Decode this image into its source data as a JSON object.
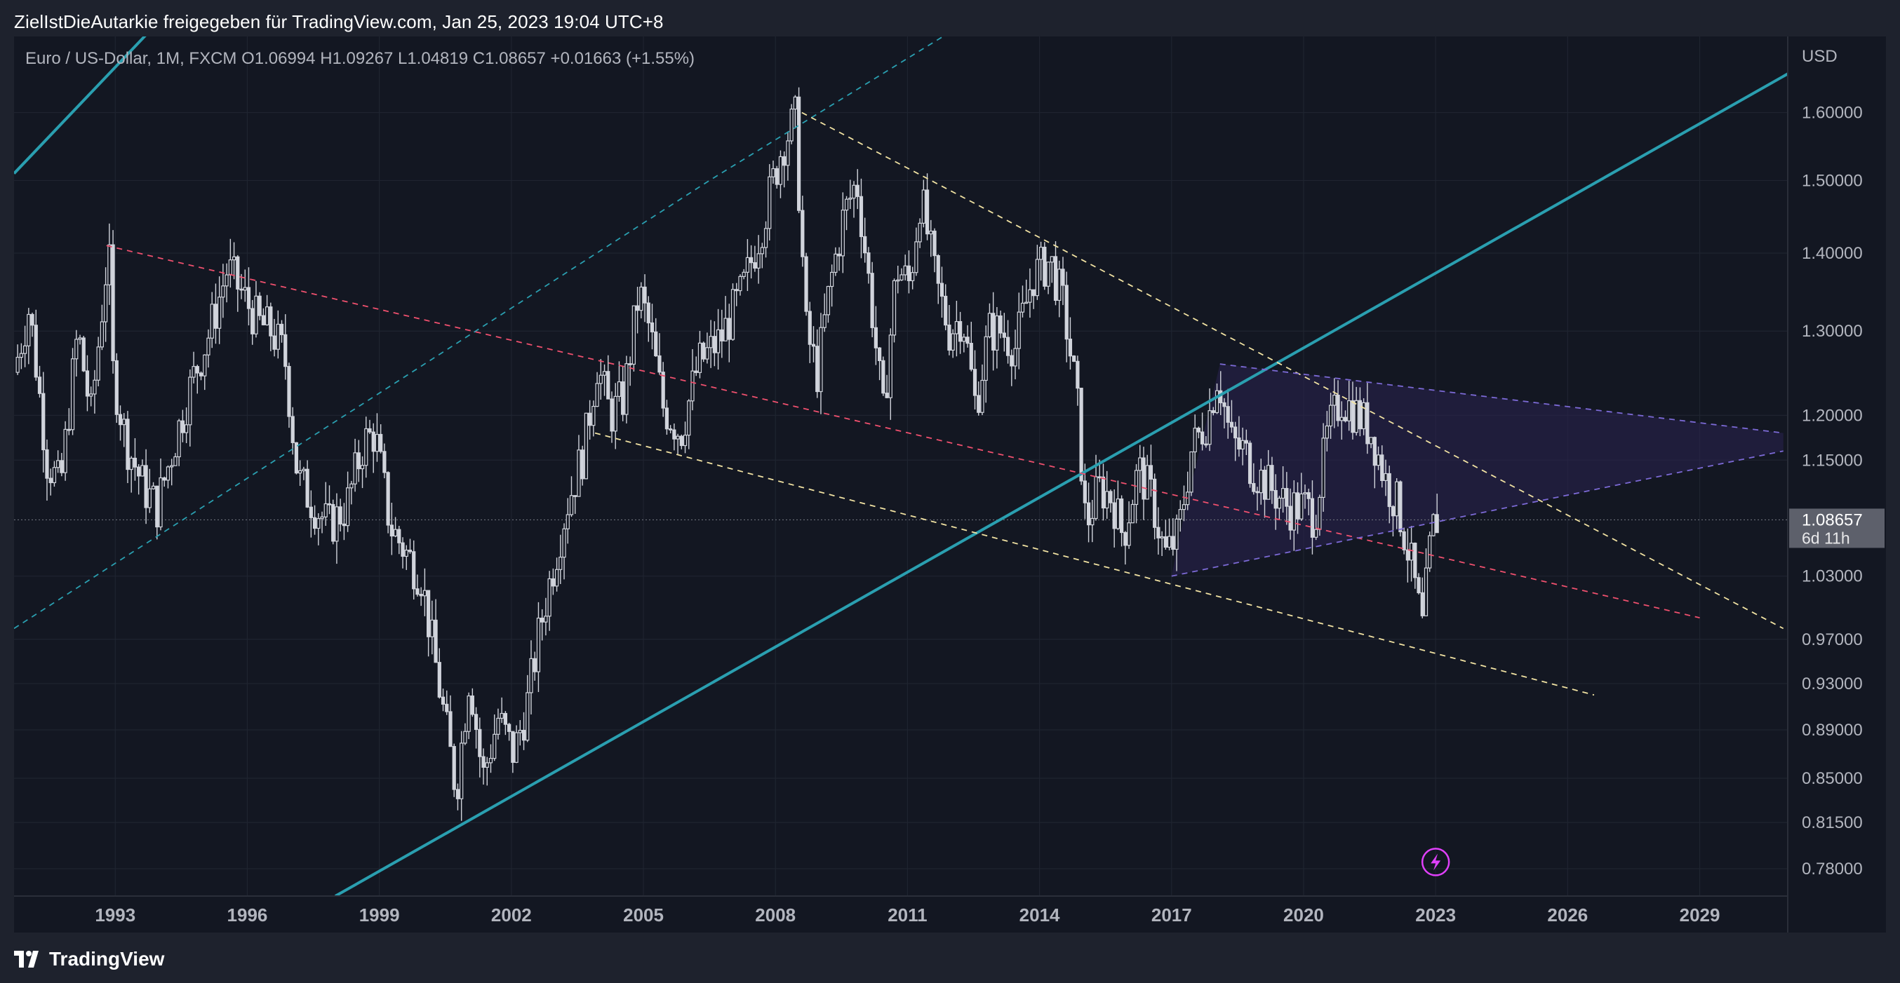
{
  "header": {
    "title": "ZielIstDieAutarkie freigegeben für TradingView.com, Jan 25, 2023 19:04 UTC+8"
  },
  "legend": {
    "symbol": "Euro / US-Dollar, 1M, FXCM",
    "o_label": "O",
    "o_value": "1.06994",
    "h_label": "H",
    "h_value": "1.09267",
    "l_label": "L",
    "l_value": "1.04819",
    "c_label": "C",
    "c_value": "1.08657",
    "change": "+0.01663 (+1.55%)"
  },
  "footer": {
    "brand": "TradingView"
  },
  "colors": {
    "background": "#131722",
    "chrome": "#1e222d",
    "candle": "#d1d4dc",
    "teal": "#2a9fb0",
    "red": "#f0506e",
    "yellow": "#f2e3a3",
    "purple": "#7c6ad6",
    "triangle_fill": "#2a2350",
    "text": "#b2b5be",
    "flash_icon": "#e040fb"
  },
  "chart_data": {
    "type": "candlestick",
    "title": "Euro / US-Dollar, 1M, FXCM",
    "currency_label": "USD",
    "y_scale": "log",
    "ylim": [
      0.76,
      1.72
    ],
    "xlim": [
      1990.7,
      2031.0
    ],
    "y_ticks": [
      1.6,
      1.5,
      1.4,
      1.3,
      1.2,
      1.15,
      1.03,
      0.97,
      0.93,
      0.89,
      0.85,
      0.815,
      0.78
    ],
    "y_tick_labels": [
      "1.60000",
      "1.50000",
      "1.40000",
      "1.30000",
      "1.20000",
      "1.15000",
      "1.03000",
      "0.97000",
      "0.93000",
      "0.89000",
      "0.85000",
      "0.81500",
      "0.78000"
    ],
    "x_ticks": [
      1993,
      1996,
      1999,
      2002,
      2005,
      2008,
      2011,
      2014,
      2017,
      2020,
      2023,
      2026,
      2029
    ],
    "x_tick_labels": [
      "1993",
      "1996",
      "1999",
      "2002",
      "2005",
      "2008",
      "2011",
      "2014",
      "2017",
      "2020",
      "2023",
      "2026",
      "2029"
    ],
    "last_price": {
      "value": 1.08657,
      "label": "1.08657",
      "countdown": "6d 11h"
    },
    "price_path": [
      [
        1990.75,
        1.25
      ],
      [
        1991.1,
        1.33
      ],
      [
        1991.5,
        1.15
      ],
      [
        1991.8,
        1.12
      ],
      [
        1992.2,
        1.3
      ],
      [
        1992.5,
        1.2
      ],
      [
        1992.9,
        1.41
      ],
      [
        1993.0,
        1.25
      ],
      [
        1993.3,
        1.17
      ],
      [
        1993.7,
        1.12
      ],
      [
        1994.0,
        1.1
      ],
      [
        1994.4,
        1.17
      ],
      [
        1994.8,
        1.24
      ],
      [
        1995.2,
        1.3
      ],
      [
        1995.6,
        1.38
      ],
      [
        1995.9,
        1.35
      ],
      [
        1996.3,
        1.31
      ],
      [
        1996.6,
        1.3
      ],
      [
        1996.9,
        1.27
      ],
      [
        1997.2,
        1.13
      ],
      [
        1997.6,
        1.1
      ],
      [
        1997.9,
        1.08
      ],
      [
        1998.3,
        1.1
      ],
      [
        1998.7,
        1.17
      ],
      [
        1998.95,
        1.18
      ],
      [
        1999.3,
        1.08
      ],
      [
        1999.7,
        1.05
      ],
      [
        2000.0,
        1.03
      ],
      [
        2000.4,
        0.93
      ],
      [
        2000.8,
        0.84
      ],
      [
        2001.1,
        0.94
      ],
      [
        2001.4,
        0.85
      ],
      [
        2001.75,
        0.9
      ],
      [
        2002.1,
        0.87
      ],
      [
        2002.4,
        0.91
      ],
      [
        2002.7,
        0.98
      ],
      [
        2002.9,
        1.02
      ],
      [
        2003.3,
        1.1
      ],
      [
        2003.7,
        1.16
      ],
      [
        2004.0,
        1.26
      ],
      [
        2004.3,
        1.2
      ],
      [
        2004.6,
        1.22
      ],
      [
        2004.95,
        1.35
      ],
      [
        2005.2,
        1.3
      ],
      [
        2005.5,
        1.21
      ],
      [
        2005.9,
        1.18
      ],
      [
        2006.3,
        1.26
      ],
      [
        2006.8,
        1.29
      ],
      [
        2007.3,
        1.35
      ],
      [
        2007.8,
        1.45
      ],
      [
        2008.2,
        1.55
      ],
      [
        2008.5,
        1.59
      ],
      [
        2008.75,
        1.3
      ],
      [
        2009.0,
        1.25
      ],
      [
        2009.3,
        1.36
      ],
      [
        2009.6,
        1.45
      ],
      [
        2009.9,
        1.5
      ],
      [
        2010.2,
        1.35
      ],
      [
        2010.5,
        1.2
      ],
      [
        2010.8,
        1.38
      ],
      [
        2011.1,
        1.36
      ],
      [
        2011.35,
        1.48
      ],
      [
        2011.7,
        1.36
      ],
      [
        2012.0,
        1.3
      ],
      [
        2012.3,
        1.32
      ],
      [
        2012.6,
        1.21
      ],
      [
        2012.9,
        1.3
      ],
      [
        2013.2,
        1.3
      ],
      [
        2013.5,
        1.28
      ],
      [
        2013.9,
        1.37
      ],
      [
        2014.3,
        1.39
      ],
      [
        2014.6,
        1.33
      ],
      [
        2014.9,
        1.22
      ],
      [
        2015.1,
        1.08
      ],
      [
        2015.4,
        1.12
      ],
      [
        2015.7,
        1.11
      ],
      [
        2015.95,
        1.07
      ],
      [
        2016.3,
        1.14
      ],
      [
        2016.6,
        1.11
      ],
      [
        2016.9,
        1.05
      ],
      [
        2017.2,
        1.07
      ],
      [
        2017.5,
        1.16
      ],
      [
        2017.9,
        1.2
      ],
      [
        2018.1,
        1.25
      ],
      [
        2018.4,
        1.17
      ],
      [
        2018.7,
        1.16
      ],
      [
        2018.9,
        1.14
      ],
      [
        2019.3,
        1.12
      ],
      [
        2019.7,
        1.1
      ],
      [
        2020.1,
        1.1
      ],
      [
        2020.3,
        1.09
      ],
      [
        2020.6,
        1.18
      ],
      [
        2020.9,
        1.22
      ],
      [
        2021.3,
        1.2
      ],
      [
        2021.6,
        1.18
      ],
      [
        2021.9,
        1.13
      ],
      [
        2022.2,
        1.1
      ],
      [
        2022.5,
        1.04
      ],
      [
        2022.75,
        0.98
      ],
      [
        2022.95,
        1.07
      ],
      [
        2023.05,
        1.087
      ]
    ],
    "trendlines": [
      {
        "name": "outer-teal-upper",
        "style": "solid",
        "color": "teal",
        "points": [
          [
            1990.7,
            1.51
          ],
          [
            1994.7,
            1.8
          ]
        ]
      },
      {
        "name": "outer-teal-lower",
        "style": "solid",
        "color": "teal",
        "points": [
          [
            1998.0,
            0.76
          ],
          [
            2031.0,
            1.66
          ]
        ]
      },
      {
        "name": "teal-dashed-middle",
        "style": "dashed",
        "color": "teal",
        "points": [
          [
            1990.7,
            0.98
          ],
          [
            2006.5,
            1.5
          ],
          [
            2014.0,
            1.82
          ]
        ]
      },
      {
        "name": "red-dashed-channel",
        "style": "dashed",
        "color": "red",
        "points": [
          [
            1992.8,
            1.41
          ],
          [
            2029.0,
            0.99
          ]
        ]
      },
      {
        "name": "yellow-dashed-upper",
        "style": "dashed",
        "color": "yellow",
        "points": [
          [
            2008.6,
            1.6
          ],
          [
            2030.9,
            0.98
          ]
        ]
      },
      {
        "name": "yellow-dashed-lower",
        "style": "dashed",
        "color": "yellow",
        "points": [
          [
            2003.9,
            1.18
          ],
          [
            2026.6,
            0.92
          ]
        ]
      },
      {
        "name": "triangle-upper",
        "style": "dashed",
        "color": "purple",
        "points": [
          [
            2018.1,
            1.26
          ],
          [
            2030.9,
            1.18
          ]
        ]
      },
      {
        "name": "triangle-lower",
        "style": "dashed",
        "color": "purple",
        "points": [
          [
            2017.0,
            1.03
          ],
          [
            2030.9,
            1.16
          ]
        ]
      }
    ],
    "annotations": [
      {
        "type": "flash-icon",
        "x": 2023.0,
        "y": 0.785
      }
    ]
  }
}
